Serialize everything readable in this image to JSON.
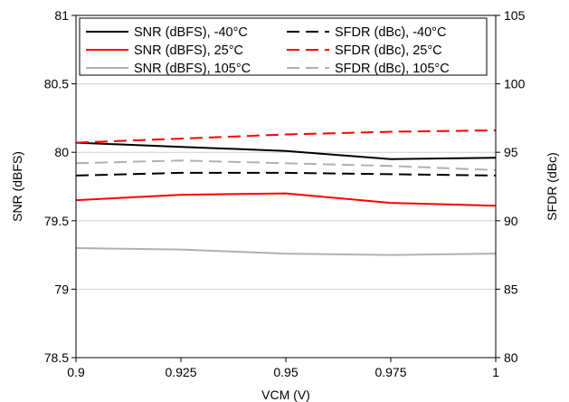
{
  "chart_data": {
    "type": "line",
    "x": [
      0.9,
      0.925,
      0.95,
      0.975,
      1
    ],
    "xlabel": "VCM (V)",
    "ylabel_left": "SNR (dBFS)",
    "ylabel_right": "SFDR (dBc)",
    "xlim": [
      0.9,
      1
    ],
    "ylim_left": [
      78.5,
      81
    ],
    "ylim_right": [
      80,
      105
    ],
    "x_ticks": [
      "0.9",
      "0.925",
      "0.95",
      "0.975",
      "1"
    ],
    "y_ticks_left": [
      "78.5",
      "79",
      "79.5",
      "80",
      "80.5",
      "81"
    ],
    "y_ticks_right": [
      "80",
      "85",
      "90",
      "95",
      "100",
      "105"
    ],
    "grid": "horizontal",
    "legend_position": "top",
    "series": [
      {
        "name": "SNR (dBFS), -40°C",
        "axis": "left",
        "color": "#000000",
        "style": "solid",
        "values": [
          80.07,
          80.04,
          80.01,
          79.95,
          79.96
        ]
      },
      {
        "name": "SFDR (dBc), -40°C",
        "axis": "right",
        "color": "#000000",
        "style": "dashed",
        "values": [
          93.3,
          93.5,
          93.5,
          93.4,
          93.3
        ]
      },
      {
        "name": "SNR (dBFS), 25°C",
        "axis": "left",
        "color": "#ff0000",
        "style": "solid",
        "values": [
          79.65,
          79.69,
          79.7,
          79.63,
          79.61
        ]
      },
      {
        "name": "SFDR (dBc), 25°C",
        "axis": "right",
        "color": "#ff0000",
        "style": "dashed",
        "values": [
          95.7,
          96.0,
          96.3,
          96.5,
          96.6
        ]
      },
      {
        "name": "SNR (dBFS), 105°C",
        "axis": "left",
        "color": "#b0b0b0",
        "style": "solid",
        "values": [
          79.3,
          79.29,
          79.26,
          79.25,
          79.26
        ]
      },
      {
        "name": "SFDR (dBc), 105°C",
        "axis": "right",
        "color": "#b0b0b0",
        "style": "dashed",
        "values": [
          94.2,
          94.4,
          94.2,
          94.0,
          93.7
        ]
      }
    ]
  }
}
